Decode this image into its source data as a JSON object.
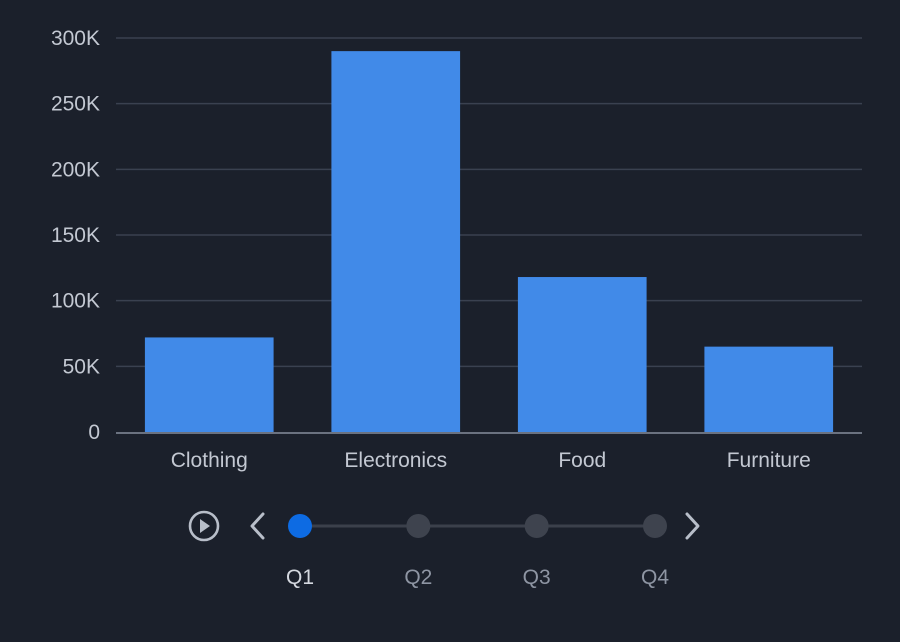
{
  "colors": {
    "background": "#1b202b",
    "bar": "#418ae8",
    "grid": "#3a4150",
    "axis": "#6b7280",
    "tick_text": "#c3c8d2",
    "timeline_track": "#3b404b",
    "timeline_active": "#0d6be3",
    "timeline_inactive": "#3e434e",
    "timeline_label": "#8e95a3",
    "timeline_label_active": "#d5d9e0",
    "control_icon": "#b8bec9"
  },
  "chart_data": {
    "type": "bar",
    "categories": [
      "Clothing",
      "Electronics",
      "Food",
      "Furniture"
    ],
    "values": [
      72000,
      290000,
      118000,
      65000
    ],
    "ylim": [
      0,
      300000
    ],
    "yticks": [
      0,
      50000,
      100000,
      150000,
      200000,
      250000,
      300000
    ],
    "ytick_labels": [
      "0",
      "50K",
      "100K",
      "150K",
      "200K",
      "250K",
      "300K"
    ],
    "grid": true,
    "title": "",
    "xlabel": "",
    "ylabel": ""
  },
  "timeline": {
    "steps": [
      "Q1",
      "Q2",
      "Q3",
      "Q4"
    ],
    "active_index": 0,
    "play_icon": "play-circle-icon",
    "prev_icon": "chevron-left-icon",
    "next_icon": "chevron-right-icon"
  }
}
